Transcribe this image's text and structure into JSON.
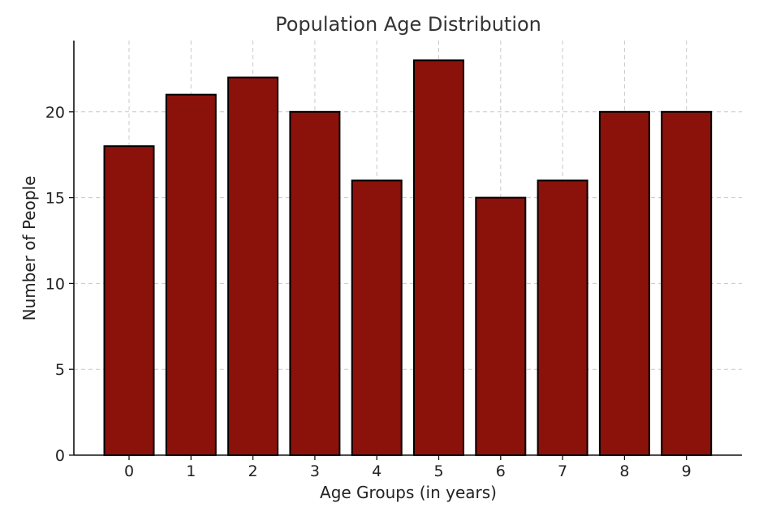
{
  "chart_data": {
    "type": "bar",
    "title": "Population Age Distribution",
    "xlabel": "Age Groups (in years)",
    "ylabel": "Number of People",
    "categories": [
      "0",
      "1",
      "2",
      "3",
      "4",
      "5",
      "6",
      "7",
      "8",
      "9"
    ],
    "values": [
      18,
      21,
      22,
      20,
      16,
      23,
      15,
      16,
      20,
      20
    ],
    "yticks": [
      0,
      5,
      10,
      15,
      20
    ],
    "ylim": [
      0,
      24.15
    ],
    "grid": true,
    "colors": {
      "bar_fill": "#8b110b",
      "bar_edge": "#000000"
    }
  }
}
